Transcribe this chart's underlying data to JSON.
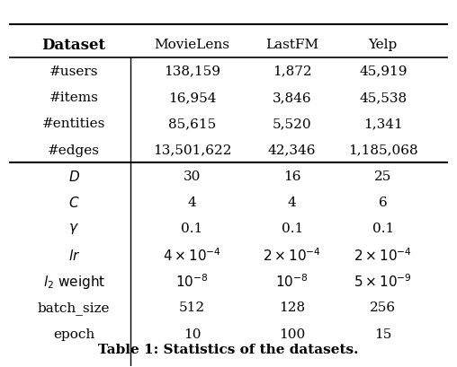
{
  "title": "Table 1: Statistics of the datasets.",
  "columns": [
    "Dataset",
    "MovieLens",
    "LastFM",
    "Yelp"
  ],
  "rows": [
    {
      "label": "#users",
      "values": [
        "138,159",
        "1,872",
        "45,919"
      ],
      "italic": false
    },
    {
      "label": "#items",
      "values": [
        "16,954",
        "3,846",
        "45,538"
      ],
      "italic": false
    },
    {
      "label": "#entities",
      "values": [
        "85,615",
        "5,520",
        "1,341"
      ],
      "italic": false
    },
    {
      "label": "#edges",
      "values": [
        "13,501,622",
        "42,346",
        "1,185,068"
      ],
      "italic": false
    },
    {
      "label": "$D$",
      "values": [
        "30",
        "16",
        "25"
      ],
      "italic": true
    },
    {
      "label": "$C$",
      "values": [
        "4",
        "4",
        "6"
      ],
      "italic": true
    },
    {
      "label": "$\\gamma$",
      "values": [
        "0.1",
        "0.1",
        "0.1"
      ],
      "italic": true
    },
    {
      "label": "$lr$",
      "values": [
        "$4 \\times 10^{-4}$",
        "$2 \\times 10^{-4}$",
        "$2 \\times 10^{-4}$"
      ],
      "italic": true
    },
    {
      "label": "$l_2$ weight",
      "values": [
        "$10^{-8}$",
        "$10^{-8}$",
        "$5 \\times 10^{-9}$"
      ],
      "italic": true
    },
    {
      "label": "batch_size",
      "values": [
        "512",
        "128",
        "256"
      ],
      "italic": false
    },
    {
      "label": "epoch",
      "values": [
        "10",
        "100",
        "15"
      ],
      "italic": false
    }
  ],
  "thick_line_after_row": 3,
  "bg_color": "#ffffff",
  "text_color": "#000000",
  "figsize": [
    5.08,
    4.1
  ],
  "dpi": 100
}
